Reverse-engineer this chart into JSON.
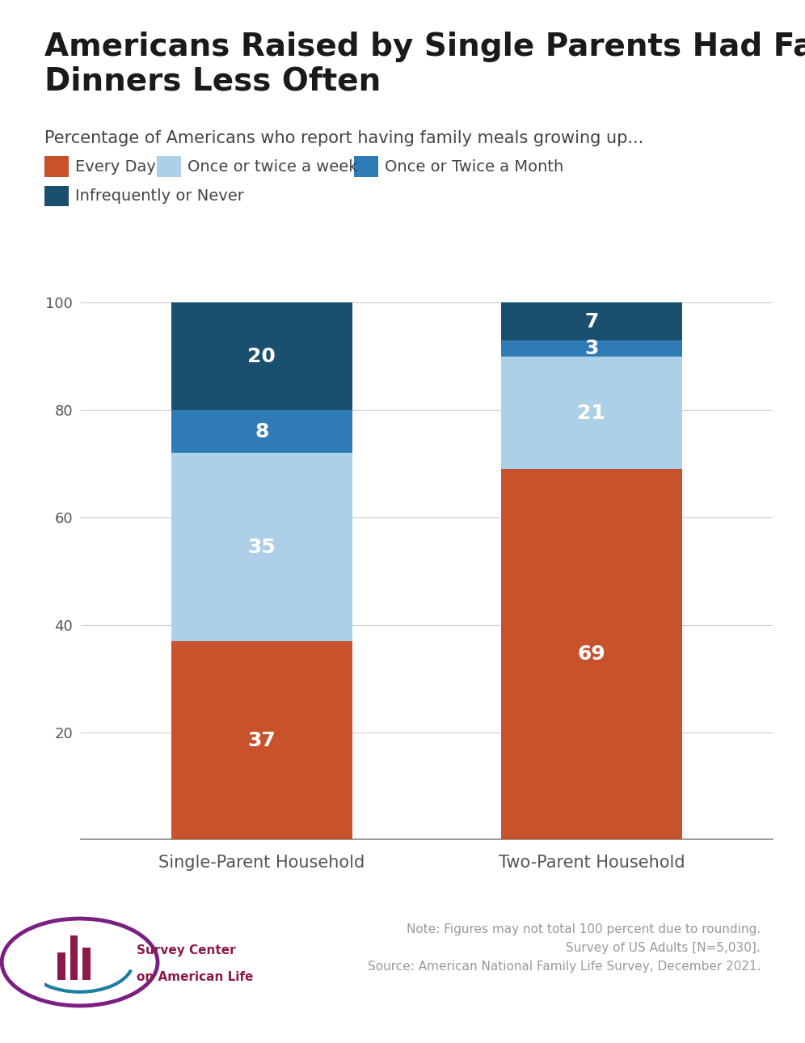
{
  "title": "Americans Raised by Single Parents Had Family\nDinners Less Often",
  "subtitle": "Percentage of Americans who report having family meals growing up...",
  "categories": [
    "Single-Parent Household",
    "Two-Parent Household"
  ],
  "segments": [
    {
      "label": "Every Day",
      "color": "#C8522B",
      "values": [
        37,
        69
      ]
    },
    {
      "label": "Once or twice a week",
      "color": "#AECFE8",
      "values": [
        35,
        21
      ]
    },
    {
      "label": "Once or Twice a Month",
      "color": "#2E7BB5",
      "values": [
        8,
        3
      ]
    },
    {
      "label": "Infrequently or Never",
      "color": "#1B4F6E",
      "values": [
        20,
        7
      ]
    }
  ],
  "note_text": "Note: Figures may not total 100 percent due to rounding.\nSurvey of US Adults [N=5,030].\nSource: American National Family Life Survey, December 2021.",
  "ylim": [
    0,
    102
  ],
  "yticks": [
    20,
    40,
    60,
    80,
    100
  ],
  "background_color": "#FFFFFF",
  "bar_width": 0.55,
  "axis_text_color": "#555555",
  "title_color": "#1a1a1a",
  "subtitle_color": "#444444",
  "note_color": "#999999",
  "legend_color": "#444444",
  "grid_color": "#cccccc",
  "label_fontsize": 18,
  "title_fontsize": 28,
  "subtitle_fontsize": 15,
  "legend_fontsize": 14,
  "xtick_fontsize": 15,
  "ytick_fontsize": 13
}
